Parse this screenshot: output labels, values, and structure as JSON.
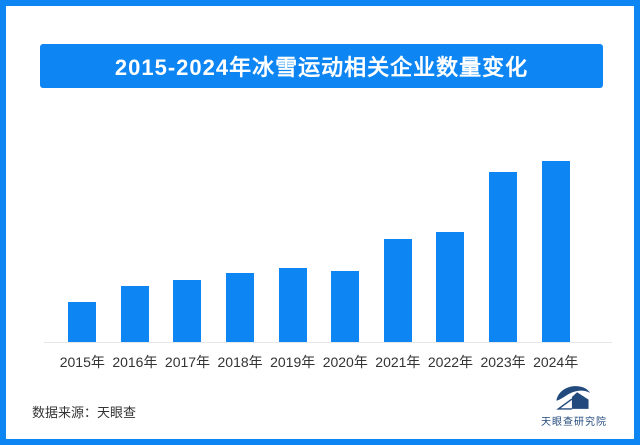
{
  "page": {
    "frame_color": "#0d86f4",
    "background": "#ffffff"
  },
  "header": {
    "title": "2015-2024年冰雪运动相关企业数量变化",
    "banner_color": "#0d86f4",
    "title_color": "#ffffff"
  },
  "chart_data": {
    "type": "bar",
    "title": "2015-2024年冰雪运动相关企业数量变化",
    "categories": [
      "2015年",
      "2016年",
      "2017年",
      "2018年",
      "2019年",
      "2020年",
      "2021年",
      "2022年",
      "2023年",
      "2024年"
    ],
    "values": [
      22,
      31,
      34,
      38,
      41,
      39,
      57,
      61,
      94,
      100
    ],
    "value_note": "no y-axis or data labels shown; values estimated from bar heights, indexed to 2024 = 100",
    "xlabel": "",
    "ylabel": "",
    "ylim": [
      0,
      106
    ],
    "grid": false,
    "legend": false,
    "bar_color": "#0d86f4",
    "baseline_color": "#e7e7e7"
  },
  "footer": {
    "source_label": "数据来源：天眼查",
    "logo_text": "天眼查研究院",
    "logo_color": "#234a7d"
  }
}
